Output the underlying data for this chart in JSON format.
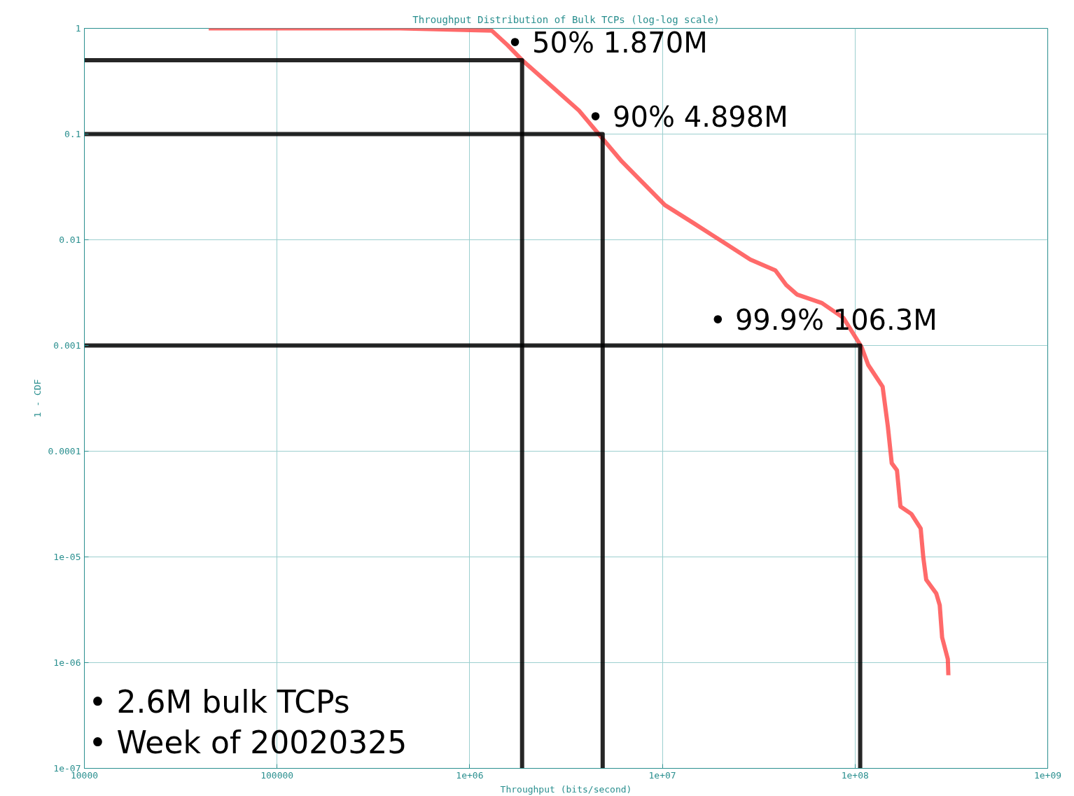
{
  "chart_data": {
    "type": "line",
    "title": "Throughput Distribution of Bulk TCPs (log-log scale)",
    "xlabel": "Throughput (bits/second)",
    "ylabel": "1 - CDF",
    "log": "xy",
    "grid": true,
    "xlim": [
      10000,
      1000000000
    ],
    "ylim": [
      1e-07,
      1
    ],
    "xticks": [
      10000,
      100000,
      {
        "value": 1000000,
        "label": "1e+06"
      },
      {
        "value": 10000000,
        "label": "1e+07"
      },
      {
        "value": 100000000,
        "label": "1e+08"
      },
      {
        "value": 1000000000,
        "label": "1e+09"
      }
    ],
    "yticks": [
      {
        "value": 1e-07,
        "label": "1e-07"
      },
      {
        "value": 1e-06,
        "label": "1e-06"
      },
      {
        "value": 1e-05,
        "label": "1e-05"
      },
      {
        "value": 0.0001,
        "label": "0.0001"
      },
      0.001,
      0.01,
      0.1,
      1
    ],
    "series": [
      {
        "color": "#ff5050",
        "x": [
          44200,
          436000,
          1300000,
          1570000,
          1860000,
          2620000,
          3690000,
          4760000,
          6150000,
          7960000,
          10300000,
          14500000,
          20400000,
          28600000,
          38600000,
          43900000,
          49900000,
          67300000,
          86900000,
          108000000,
          117000000,
          139000000,
          148000000,
          155000000,
          165000000,
          172000000,
          196000000,
          219000000,
          226000000,
          234000000,
          264000000,
          275000000,
          283000000,
          303000000,
          305000000
        ],
        "values": [
          1,
          1,
          0.953,
          0.695,
          0.506,
          0.291,
          0.167,
          0.096,
          0.0552,
          0.0343,
          0.0213,
          0.0144,
          0.00966,
          0.0065,
          0.00513,
          0.00374,
          0.00304,
          0.00252,
          0.00183,
          0.00097,
          0.000655,
          0.000407,
          0.000171,
          7.7e-05,
          6.6e-05,
          3e-05,
          2.55e-05,
          1.86e-05,
          9.9e-06,
          6.1e-06,
          4.5e-06,
          3.5e-06,
          1.73e-06,
          1.08e-06,
          7.6e-07
        ]
      },
      {
        "color": "#000000",
        "x": [
          10000,
          1870000,
          1870000
        ],
        "values": [
          0.5,
          0.5,
          1e-07
        ]
      },
      {
        "color": "#000000",
        "x": [
          10000,
          4898000,
          4898000
        ],
        "values": [
          0.1,
          0.1,
          1e-07
        ]
      },
      {
        "color": "#000000",
        "x": [
          10000,
          106300000,
          106300000
        ],
        "values": [
          0.001,
          0.001,
          1e-07
        ]
      }
    ],
    "annotations": [
      {
        "text": "• 50%   1.870M",
        "x": 1870000,
        "y": 0.5
      },
      {
        "text": "• 90%   4.898M",
        "x": 4898000,
        "y": 0.1
      },
      {
        "text": "•  99.9% 106.3M",
        "x": 106300000,
        "y": 0.001
      },
      "• 2.6M bulk TCPs",
      "• Week of 20020325"
    ]
  }
}
